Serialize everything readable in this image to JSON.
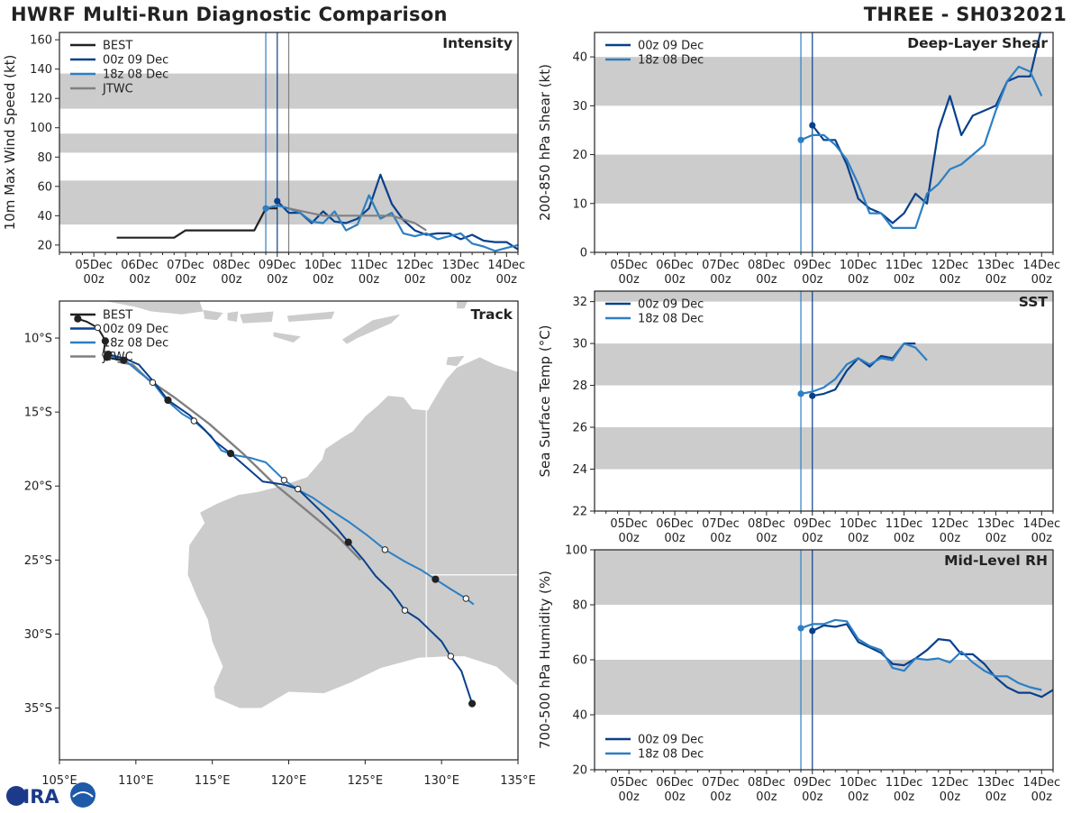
{
  "header": {
    "title": "HWRF Multi-Run Diagnostic Comparison",
    "storm": "THREE - SH032021"
  },
  "colors": {
    "best": "#222222",
    "run1": "#08408c",
    "run2": "#2c7fc4",
    "jtwc": "#808080",
    "band": "#cccccc",
    "land": "#cccccc"
  },
  "logo": {
    "text": "CIRA"
  },
  "time_ticks": [
    {
      "t": 0,
      "label": "05Dec\n00z"
    },
    {
      "t": 1,
      "label": "06Dec\n00z"
    },
    {
      "t": 2,
      "label": "07Dec\n00z"
    },
    {
      "t": 3,
      "label": "08Dec\n00z"
    },
    {
      "t": 4,
      "label": "09Dec\n00z"
    },
    {
      "t": 5,
      "label": "10Dec\n00z"
    },
    {
      "t": 6,
      "label": "11Dec\n00z"
    },
    {
      "t": 7,
      "label": "12Dec\n00z"
    },
    {
      "t": 8,
      "label": "13Dec\n00z"
    },
    {
      "t": 9,
      "label": "14Dec\n00z"
    }
  ],
  "chart_data": [
    {
      "id": "intensity",
      "type": "line",
      "title": "Intensity",
      "ylabel": "10m Max Wind Speed (kt)",
      "xlim": [
        -0.75,
        9.25
      ],
      "ylim": [
        15,
        165
      ],
      "yticks": [
        20,
        40,
        60,
        80,
        100,
        120,
        140,
        160
      ],
      "bands": [
        [
          34,
          64
        ],
        [
          83,
          96
        ],
        [
          113,
          137
        ]
      ],
      "vlines": [
        {
          "t": 3.75,
          "color": "run2"
        },
        {
          "t": 4.0,
          "color": "run1"
        },
        {
          "t": 4.25,
          "color": "jtwc"
        }
      ],
      "legend": [
        "BEST",
        "00z 09 Dec",
        "18z 08 Dec",
        "JTWC"
      ],
      "series": [
        {
          "name": "BEST",
          "color": "best",
          "t": [
            0.5,
            1.75,
            2.0,
            3.5,
            3.75,
            4.0
          ],
          "v": [
            25,
            25,
            30,
            30,
            45,
            45
          ]
        },
        {
          "name": "00z 09 Dec",
          "color": "run1",
          "marker_t": 4.0,
          "t": [
            4.0,
            4.25,
            4.5,
            4.75,
            5.0,
            5.25,
            5.5,
            5.75,
            6.0,
            6.25,
            6.5,
            6.75,
            7.0,
            7.25,
            7.5,
            7.75,
            8.0,
            8.25,
            8.5,
            8.75,
            9.0,
            9.25
          ],
          "v": [
            50,
            42,
            42,
            35,
            43,
            36,
            35,
            38,
            45,
            68,
            48,
            37,
            30,
            27,
            28,
            28,
            24,
            27,
            23,
            22,
            22,
            17
          ]
        },
        {
          "name": "18z 08 Dec",
          "color": "run2",
          "marker_t": 3.75,
          "t": [
            3.75,
            4.0,
            4.25,
            4.5,
            4.75,
            5.0,
            5.25,
            5.5,
            5.75,
            6.0,
            6.25,
            6.5,
            6.75,
            7.0,
            7.25,
            7.5,
            7.75,
            8.0,
            8.25,
            8.5,
            8.75,
            9.0,
            9.25
          ],
          "v": [
            45,
            47,
            45,
            42,
            36,
            35,
            43,
            30,
            34,
            54,
            38,
            42,
            28,
            26,
            28,
            24,
            26,
            28,
            21,
            19,
            16,
            18,
            20
          ]
        },
        {
          "name": "JTWC",
          "color": "jtwc",
          "t": [
            4.25,
            5.0,
            6.0,
            6.5,
            7.0,
            7.25
          ],
          "v": [
            45,
            40,
            40,
            40,
            35,
            30
          ]
        }
      ]
    },
    {
      "id": "shear",
      "type": "line",
      "title": "Deep-Layer Shear",
      "ylabel": "200-850 hPa Shear (kt)",
      "xlim": [
        -0.75,
        9.25
      ],
      "ylim": [
        0,
        45
      ],
      "yticks": [
        0,
        10,
        20,
        30,
        40
      ],
      "bands": [
        [
          10,
          20
        ],
        [
          30,
          40
        ]
      ],
      "vlines": [
        {
          "t": 3.75,
          "color": "run2"
        },
        {
          "t": 4.0,
          "color": "run1"
        }
      ],
      "legend": [
        "00z 09 Dec",
        "18z 08 Dec"
      ],
      "series": [
        {
          "name": "00z 09 Dec",
          "color": "run1",
          "marker_t": 4.0,
          "t": [
            4.0,
            4.25,
            4.5,
            4.75,
            5.0,
            5.25,
            5.5,
            5.75,
            6.0,
            6.25,
            6.5,
            6.75,
            7.0,
            7.25,
            7.5,
            8.0,
            8.25,
            8.5,
            8.75,
            9.0
          ],
          "v": [
            26,
            23,
            23,
            18,
            11,
            9,
            8,
            6,
            8,
            12,
            10,
            25,
            32,
            24,
            28,
            30,
            35,
            36,
            36,
            46
          ]
        },
        {
          "name": "18z 08 Dec",
          "color": "run2",
          "marker_t": 3.75,
          "t": [
            3.75,
            4.0,
            4.25,
            4.5,
            4.75,
            5.0,
            5.25,
            5.5,
            5.75,
            6.0,
            6.25,
            6.5,
            6.75,
            7.0,
            7.25,
            7.5,
            7.75,
            8.0,
            8.25,
            8.5,
            8.75,
            9.0
          ],
          "v": [
            23,
            24,
            24,
            22,
            19,
            14,
            8,
            8,
            5,
            5,
            5,
            12,
            14,
            17,
            18,
            20,
            22,
            29,
            35,
            38,
            37,
            32
          ]
        }
      ]
    },
    {
      "id": "sst",
      "type": "line",
      "title": "SST",
      "ylabel": "Sea Surface Temp (°C)",
      "xlim": [
        -0.75,
        9.25
      ],
      "ylim": [
        22,
        32.5
      ],
      "yticks": [
        22,
        24,
        26,
        28,
        30,
        32
      ],
      "bands": [
        [
          24,
          26
        ],
        [
          28,
          30
        ],
        [
          32,
          34
        ]
      ],
      "vlines": [
        {
          "t": 3.75,
          "color": "run2"
        },
        {
          "t": 4.0,
          "color": "run1"
        }
      ],
      "legend": [
        "00z 09 Dec",
        "18z 08 Dec"
      ],
      "series": [
        {
          "name": "00z 09 Dec",
          "color": "run1",
          "marker_t": 4.0,
          "t": [
            4.0,
            4.25,
            4.5,
            4.75,
            5.0,
            5.25,
            5.5,
            5.75,
            6.0,
            6.25
          ],
          "v": [
            27.5,
            27.6,
            27.8,
            28.7,
            29.3,
            28.9,
            29.4,
            29.3,
            30.0,
            30.0
          ]
        },
        {
          "name": "18z 08 Dec",
          "color": "run2",
          "marker_t": 3.75,
          "t": [
            3.75,
            4.0,
            4.25,
            4.5,
            4.75,
            5.0,
            5.25,
            5.5,
            5.75,
            6.0,
            6.25,
            6.5
          ],
          "v": [
            27.6,
            27.7,
            27.9,
            28.3,
            29.0,
            29.3,
            29.0,
            29.3,
            29.2,
            30.0,
            29.8,
            29.2
          ]
        }
      ]
    },
    {
      "id": "rh",
      "type": "line",
      "title": "Mid-Level RH",
      "ylabel": "700-500 hPa Humidity (%)",
      "xlim": [
        -0.75,
        9.25
      ],
      "ylim": [
        20,
        100
      ],
      "yticks": [
        20,
        40,
        60,
        80,
        100
      ],
      "bands": [
        [
          40,
          60
        ],
        [
          80,
          100
        ]
      ],
      "vlines": [
        {
          "t": 3.75,
          "color": "run2"
        },
        {
          "t": 4.0,
          "color": "run1"
        }
      ],
      "legend": [
        "00z 09 Dec",
        "18z 08 Dec"
      ],
      "legend_pos": "bottom-left",
      "series": [
        {
          "name": "00z 09 Dec",
          "color": "run1",
          "marker_t": 4.0,
          "t": [
            4.0,
            4.25,
            4.5,
            4.75,
            5.0,
            5.25,
            5.5,
            5.75,
            6.0,
            6.25,
            6.5,
            6.75,
            7.0,
            7.25,
            7.5,
            7.75,
            8.0,
            8.25,
            8.5,
            8.75,
            9.0,
            9.25
          ],
          "v": [
            70.5,
            72.5,
            72.0,
            73.0,
            66.5,
            64.5,
            62.5,
            58.5,
            58.0,
            60.5,
            63.5,
            67.5,
            67.0,
            62.0,
            62.0,
            58.5,
            53.5,
            50.0,
            48.0,
            48.0,
            46.5,
            49.0
          ]
        },
        {
          "name": "18z 08 Dec",
          "color": "run2",
          "marker_t": 3.75,
          "t": [
            3.75,
            4.0,
            4.25,
            4.5,
            4.75,
            5.0,
            5.25,
            5.5,
            5.75,
            6.0,
            6.25,
            6.5,
            6.75,
            7.0,
            7.25,
            7.5,
            7.75,
            8.0,
            8.25,
            8.5,
            8.75,
            9.0
          ],
          "v": [
            71.5,
            73.0,
            73.0,
            74.5,
            74.0,
            67.5,
            65.0,
            63.5,
            57.0,
            56.0,
            60.5,
            60.0,
            60.5,
            59.0,
            63.0,
            59.0,
            56.0,
            54.0,
            54.0,
            51.5,
            50.0,
            49.0
          ]
        }
      ]
    },
    {
      "id": "track",
      "type": "scatter",
      "title": "Track",
      "xlim": [
        105,
        135
      ],
      "ylim": [
        -38.5,
        -7.5
      ],
      "xticks": [
        105,
        110,
        115,
        120,
        125,
        130,
        135
      ],
      "xticklabels": [
        "105°E",
        "110°E",
        "115°E",
        "120°E",
        "125°E",
        "130°E",
        "135°E"
      ],
      "yticks": [
        -10,
        -15,
        -20,
        -25,
        -30,
        -35
      ],
      "yticklabels": [
        "10°S",
        "15°S",
        "20°S",
        "25°S",
        "30°S",
        "35°S"
      ],
      "legend": [
        "BEST",
        "00z 09 Dec",
        "18z 08 Dec",
        "JTWC"
      ],
      "series": [
        {
          "name": "BEST",
          "color": "best",
          "lon": [
            106.2,
            106.8,
            107.5,
            107.8,
            108.0,
            107.9,
            108.1,
            108.5,
            109.2
          ],
          "lat": [
            -8.7,
            -8.9,
            -9.3,
            -9.8,
            -10.2,
            -10.9,
            -11.3,
            -11.4,
            -11.5
          ],
          "daily": [
            true,
            false,
            true,
            false,
            true,
            false,
            true,
            false,
            true
          ],
          "hollow": [
            false,
            false,
            true,
            false,
            false,
            false,
            false,
            false,
            false
          ]
        },
        {
          "name": "00z 09 Dec",
          "color": "run1",
          "lon": [
            108.2,
            109.3,
            110.2,
            111.2,
            112.1,
            113.5,
            114.5,
            115.2,
            116.2,
            117.2,
            118.3,
            119.7,
            120.6,
            121.4,
            122.3,
            123.1,
            123.9,
            124.9,
            125.7,
            126.7,
            127.6,
            128.5,
            129.3,
            130.0,
            130.6,
            131.3,
            132.0
          ],
          "lat": [
            -11.1,
            -11.4,
            -11.8,
            -13.0,
            -14.2,
            -15.2,
            -16.2,
            -17.0,
            -17.8,
            -18.7,
            -19.7,
            -19.9,
            -20.2,
            -21.0,
            -21.9,
            -22.8,
            -23.8,
            -25.0,
            -26.1,
            -27.1,
            -28.4,
            -29.0,
            -29.8,
            -30.5,
            -31.5,
            -32.5,
            -34.7
          ],
          "daily": [
            true,
            false,
            false,
            false,
            true,
            false,
            false,
            false,
            true,
            false,
            false,
            false,
            true,
            false,
            false,
            false,
            true,
            false,
            false,
            false,
            true,
            false,
            false,
            false,
            true,
            false,
            true
          ],
          "hollow": [
            false,
            false,
            false,
            false,
            false,
            false,
            false,
            false,
            false,
            false,
            false,
            false,
            true,
            false,
            false,
            false,
            false,
            false,
            false,
            false,
            true,
            false,
            false,
            false,
            true,
            false,
            false
          ]
        },
        {
          "name": "18z 08 Dec",
          "color": "run2",
          "lon": [
            108.0,
            108.6,
            109.4,
            110.2,
            111.1,
            112.0,
            113.0,
            113.8,
            114.9,
            115.6,
            116.4,
            117.5,
            118.5,
            119.7,
            120.7,
            121.6,
            122.7,
            123.9,
            125.1,
            126.3,
            127.6,
            128.7,
            129.6,
            130.5,
            131.6,
            132.1
          ],
          "lat": [
            -11.1,
            -11.3,
            -11.6,
            -12.3,
            -13.0,
            -14.2,
            -15.1,
            -15.6,
            -16.6,
            -17.6,
            -17.9,
            -18.1,
            -18.4,
            -19.6,
            -20.3,
            -20.8,
            -21.6,
            -22.4,
            -23.3,
            -24.3,
            -25.1,
            -25.7,
            -26.3,
            -26.9,
            -27.6,
            -28.0
          ],
          "daily": [
            true,
            false,
            false,
            false,
            true,
            false,
            false,
            true,
            false,
            false,
            false,
            false,
            false,
            true,
            false,
            false,
            false,
            false,
            false,
            true,
            false,
            false,
            true,
            false,
            true,
            false
          ],
          "hollow": [
            true,
            false,
            false,
            false,
            true,
            false,
            false,
            true,
            false,
            false,
            false,
            false,
            false,
            true,
            false,
            false,
            false,
            false,
            false,
            true,
            false,
            false,
            false,
            false,
            true,
            false
          ]
        },
        {
          "name": "JTWC",
          "color": "jtwc",
          "lon": [
            108.8,
            109.8,
            110.8,
            112.5,
            114.8,
            117.0,
            119.0,
            121.0,
            123.2,
            124.7
          ],
          "lat": [
            -11.6,
            -11.8,
            -12.8,
            -14.0,
            -15.8,
            -17.8,
            -19.8,
            -21.5,
            -23.4,
            -25.0
          ],
          "daily": [
            false,
            false,
            false,
            false,
            false,
            false,
            false,
            false,
            false,
            false
          ],
          "hollow": [
            false,
            false,
            false,
            false,
            false,
            false,
            false,
            false,
            false,
            false
          ]
        }
      ]
    }
  ]
}
